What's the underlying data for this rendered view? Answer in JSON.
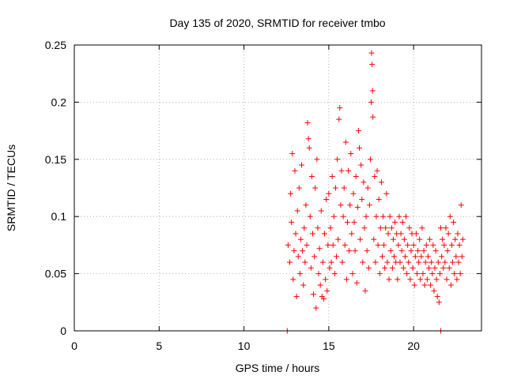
{
  "chart_data": {
    "type": "scatter",
    "title": "Day 135 of 2020, SRMTID for receiver tmbo",
    "xlabel": "GPS time / hours",
    "ylabel": "SRMTID / TECUs",
    "xlim": [
      0,
      24
    ],
    "ylim": [
      0,
      0.25
    ],
    "xticks": [
      0,
      5,
      10,
      15,
      20
    ],
    "xtick_labels": [
      "0",
      "5",
      "10",
      "15",
      "20"
    ],
    "yticks": [
      0,
      0.05,
      0.1,
      0.15,
      0.2,
      0.25
    ],
    "ytick_labels": [
      "0",
      "0.05",
      "0.1",
      "0.15",
      "0.2",
      "0.25"
    ],
    "grid": true,
    "marker": "+",
    "color": "#ff0000",
    "series": [
      {
        "name": "SRMTID",
        "points": [
          [
            12.55,
            0.0
          ],
          [
            21.6,
            0.0
          ],
          [
            12.6,
            0.075
          ],
          [
            12.7,
            0.06
          ],
          [
            12.75,
            0.12
          ],
          [
            12.8,
            0.095
          ],
          [
            12.85,
            0.155
          ],
          [
            12.9,
            0.045
          ],
          [
            12.95,
            0.07
          ],
          [
            13.0,
            0.14
          ],
          [
            13.05,
            0.085
          ],
          [
            13.1,
            0.03
          ],
          [
            13.15,
            0.105
          ],
          [
            13.2,
            0.065
          ],
          [
            13.25,
            0.125
          ],
          [
            13.3,
            0.05
          ],
          [
            13.35,
            0.08
          ],
          [
            13.4,
            0.145
          ],
          [
            13.45,
            0.07
          ],
          [
            13.5,
            0.04
          ],
          [
            13.55,
            0.09
          ],
          [
            13.6,
            0.06
          ],
          [
            13.65,
            0.11
          ],
          [
            13.7,
            0.075
          ],
          [
            13.75,
            0.182
          ],
          [
            13.8,
            0.168
          ],
          [
            13.85,
            0.16
          ],
          [
            13.9,
            0.1
          ],
          [
            13.95,
            0.055
          ],
          [
            14.0,
            0.135
          ],
          [
            14.05,
            0.085
          ],
          [
            14.1,
            0.032
          ],
          [
            14.15,
            0.065
          ],
          [
            14.2,
            0.125
          ],
          [
            14.25,
            0.02
          ],
          [
            14.3,
            0.15
          ],
          [
            14.35,
            0.09
          ],
          [
            14.4,
            0.05
          ],
          [
            14.45,
            0.072
          ],
          [
            14.5,
            0.04
          ],
          [
            14.55,
            0.105
          ],
          [
            14.6,
            0.03
          ],
          [
            14.65,
            0.06
          ],
          [
            14.7,
            0.028
          ],
          [
            14.75,
            0.085
          ],
          [
            14.8,
            0.045
          ],
          [
            14.85,
            0.115
          ],
          [
            14.9,
            0.035
          ],
          [
            14.95,
            0.075
          ],
          [
            15.0,
            0.12
          ],
          [
            15.05,
            0.055
          ],
          [
            15.1,
            0.09
          ],
          [
            15.15,
            0.06
          ],
          [
            15.2,
            0.135
          ],
          [
            15.25,
            0.075
          ],
          [
            15.3,
            0.1
          ],
          [
            15.35,
            0.05
          ],
          [
            15.4,
            0.125
          ],
          [
            15.45,
            0.065
          ],
          [
            15.5,
            0.15
          ],
          [
            15.55,
            0.08
          ],
          [
            15.6,
            0.185
          ],
          [
            15.65,
            0.195
          ],
          [
            15.7,
            0.11
          ],
          [
            15.75,
            0.14
          ],
          [
            15.8,
            0.06
          ],
          [
            15.85,
            0.1
          ],
          [
            15.9,
            0.125
          ],
          [
            15.95,
            0.075
          ],
          [
            16.0,
            0.165
          ],
          [
            16.05,
            0.045
          ],
          [
            16.1,
            0.095
          ],
          [
            16.15,
            0.14
          ],
          [
            16.2,
            0.07
          ],
          [
            16.25,
            0.11
          ],
          [
            16.3,
            0.155
          ],
          [
            16.35,
            0.085
          ],
          [
            16.4,
            0.05
          ],
          [
            16.45,
            0.12
          ],
          [
            16.5,
            0.095
          ],
          [
            16.55,
            0.07
          ],
          [
            16.6,
            0.135
          ],
          [
            16.65,
            0.042
          ],
          [
            16.7,
            0.108
          ],
          [
            16.75,
            0.175
          ],
          [
            16.8,
            0.16
          ],
          [
            16.85,
            0.08
          ],
          [
            16.9,
            0.145
          ],
          [
            16.95,
            0.115
          ],
          [
            17.0,
            0.06
          ],
          [
            17.05,
            0.13
          ],
          [
            17.1,
            0.09
          ],
          [
            17.15,
            0.035
          ],
          [
            17.2,
            0.1
          ],
          [
            17.25,
            0.07
          ],
          [
            17.3,
            0.125
          ],
          [
            17.35,
            0.055
          ],
          [
            17.4,
            0.11
          ],
          [
            17.45,
            0.15
          ],
          [
            17.5,
            0.2
          ],
          [
            17.52,
            0.243
          ],
          [
            17.55,
            0.233
          ],
          [
            17.58,
            0.21
          ],
          [
            17.6,
            0.187
          ],
          [
            17.65,
            0.08
          ],
          [
            17.7,
            0.135
          ],
          [
            17.75,
            0.06
          ],
          [
            17.8,
            0.1
          ],
          [
            17.85,
            0.14
          ],
          [
            17.9,
            0.075
          ],
          [
            17.95,
            0.115
          ],
          [
            18.0,
            0.05
          ],
          [
            18.05,
            0.09
          ],
          [
            18.1,
            0.13
          ],
          [
            18.15,
            0.065
          ],
          [
            18.2,
            0.1
          ],
          [
            18.25,
            0.075
          ],
          [
            18.3,
            0.055
          ],
          [
            18.35,
            0.09
          ],
          [
            18.4,
            0.12
          ],
          [
            18.45,
            0.06
          ],
          [
            18.5,
            0.085
          ],
          [
            18.55,
            0.045
          ],
          [
            18.6,
            0.1
          ],
          [
            18.65,
            0.07
          ],
          [
            18.7,
            0.09
          ],
          [
            18.75,
            0.055
          ],
          [
            18.8,
            0.08
          ],
          [
            18.85,
            0.065
          ],
          [
            18.9,
            0.095
          ],
          [
            18.95,
            0.06
          ],
          [
            19.0,
            0.085
          ],
          [
            19.05,
            0.045
          ],
          [
            19.1,
            0.075
          ],
          [
            19.15,
            0.1
          ],
          [
            19.2,
            0.06
          ],
          [
            19.25,
            0.085
          ],
          [
            19.3,
            0.07
          ],
          [
            19.35,
            0.095
          ],
          [
            19.4,
            0.055
          ],
          [
            19.45,
            0.08
          ],
          [
            19.5,
            0.065
          ],
          [
            19.55,
            0.1
          ],
          [
            19.6,
            0.05
          ],
          [
            19.65,
            0.075
          ],
          [
            19.7,
            0.06
          ],
          [
            19.75,
            0.09
          ],
          [
            19.8,
            0.045
          ],
          [
            19.85,
            0.07
          ],
          [
            19.9,
            0.085
          ],
          [
            19.95,
            0.055
          ],
          [
            20.0,
            0.075
          ],
          [
            20.05,
            0.04
          ],
          [
            20.1,
            0.065
          ],
          [
            20.15,
            0.085
          ],
          [
            20.2,
            0.05
          ],
          [
            20.25,
            0.07
          ],
          [
            20.3,
            0.06
          ],
          [
            20.35,
            0.08
          ],
          [
            20.4,
            0.045
          ],
          [
            20.45,
            0.065
          ],
          [
            20.5,
            0.09
          ],
          [
            20.55,
            0.05
          ],
          [
            20.6,
            0.07
          ],
          [
            20.65,
            0.04
          ],
          [
            20.7,
            0.06
          ],
          [
            20.75,
            0.075
          ],
          [
            20.8,
            0.045
          ],
          [
            20.85,
            0.065
          ],
          [
            20.9,
            0.055
          ],
          [
            20.95,
            0.08
          ],
          [
            21.0,
            0.04
          ],
          [
            21.05,
            0.06
          ],
          [
            21.1,
            0.05
          ],
          [
            21.15,
            0.075
          ],
          [
            21.2,
            0.035
          ],
          [
            21.25,
            0.055
          ],
          [
            21.3,
            0.07
          ],
          [
            21.35,
            0.045
          ],
          [
            21.4,
            0.03
          ],
          [
            21.45,
            0.06
          ],
          [
            21.5,
            0.025
          ],
          [
            21.55,
            0.05
          ],
          [
            21.6,
            0.09
          ],
          [
            21.65,
            0.065
          ],
          [
            21.7,
            0.08
          ],
          [
            21.75,
            0.055
          ],
          [
            21.8,
            0.075
          ],
          [
            21.85,
            0.06
          ],
          [
            21.9,
            0.09
          ],
          [
            21.95,
            0.045
          ],
          [
            22.0,
            0.07
          ],
          [
            22.05,
            0.085
          ],
          [
            22.1,
            0.055
          ],
          [
            22.15,
            0.1
          ],
          [
            22.2,
            0.04
          ],
          [
            22.25,
            0.075
          ],
          [
            22.3,
            0.06
          ],
          [
            22.35,
            0.095
          ],
          [
            22.4,
            0.05
          ],
          [
            22.45,
            0.08
          ],
          [
            22.5,
            0.065
          ],
          [
            22.55,
            0.045
          ],
          [
            22.6,
            0.085
          ],
          [
            22.65,
            0.06
          ],
          [
            22.7,
            0.075
          ],
          [
            22.75,
            0.05
          ],
          [
            22.8,
            0.11
          ],
          [
            22.85,
            0.065
          ],
          [
            22.9,
            0.08
          ]
        ]
      }
    ]
  }
}
